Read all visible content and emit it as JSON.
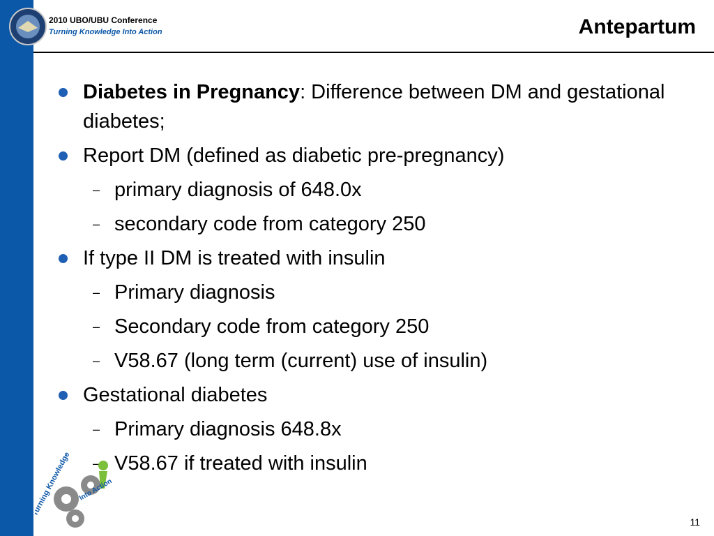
{
  "header": {
    "conference": "2010 UBO/UBU Conference",
    "tagline": "Turning Knowledge Into Action",
    "title": "Antepartum"
  },
  "bullets": [
    {
      "bold": "Diabetes in Pregnancy",
      "text": ":  Difference between DM and gestational diabetes;",
      "sub": []
    },
    {
      "text": "Report DM (defined as diabetic pre-pregnancy)",
      "sub": [
        "primary diagnosis of 648.0x",
        "secondary code from category 250"
      ]
    },
    {
      "text": "If type II DM is treated with insulin",
      "sub": [
        "Primary diagnosis",
        "Secondary code from category 250",
        "V58.67 (long term (current) use of insulin)"
      ]
    },
    {
      "text": "Gestational diabetes",
      "sub": [
        "Primary diagnosis 648.8x",
        "V58.67 if treated with insulin"
      ]
    }
  ],
  "logo": {
    "line1": "Turning Knowledge",
    "line2": "Into Action"
  },
  "page_number": "11"
}
